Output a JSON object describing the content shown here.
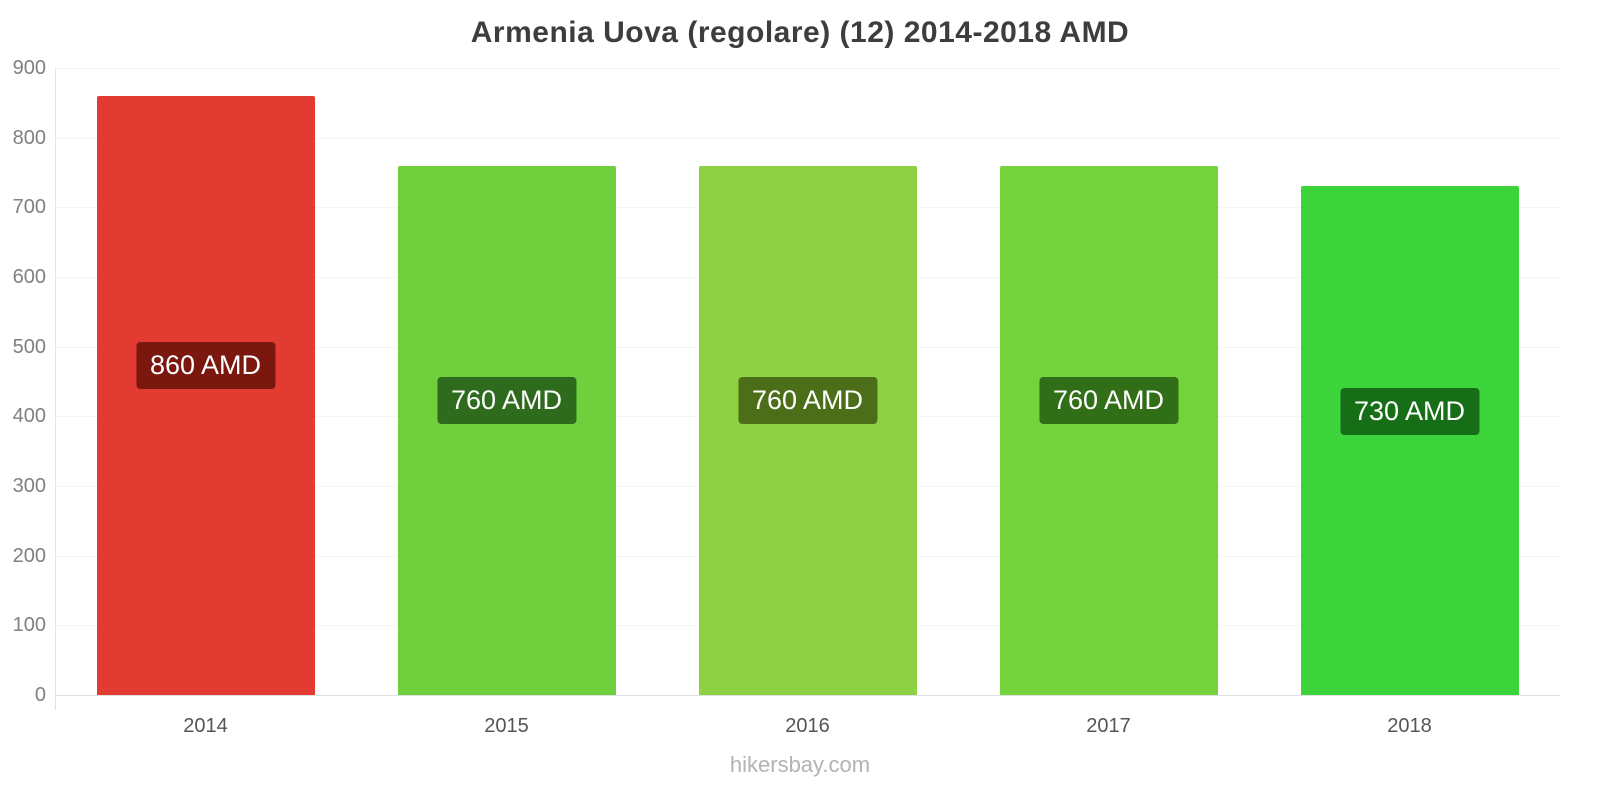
{
  "title": "Armenia Uova (regolare) (12) 2014-2018 AMD",
  "footer": "hikersbay.com",
  "chart_data": {
    "type": "bar",
    "title": "Armenia Uova (regolare) (12) 2014-2018 AMD",
    "categories": [
      "2014",
      "2015",
      "2016",
      "2017",
      "2018"
    ],
    "values": [
      860,
      760,
      760,
      760,
      730
    ],
    "value_labels": [
      "860 AMD",
      "760 AMD",
      "760 AMD",
      "760 AMD",
      "730 AMD"
    ],
    "bar_colors": [
      "#e23b31",
      "#6fcf3c",
      "#8ed143",
      "#74d23d",
      "#3cd43a"
    ],
    "label_bg_colors": [
      "#7a170f",
      "#2e6b1c",
      "#4d6e18",
      "#306e18",
      "#166e16"
    ],
    "xlabel": "",
    "ylabel": "",
    "ylim": [
      0,
      900
    ],
    "yticks": [
      0,
      100,
      200,
      300,
      400,
      500,
      600,
      700,
      800,
      900
    ],
    "grid": "faint-horizontal",
    "legend": "none"
  }
}
